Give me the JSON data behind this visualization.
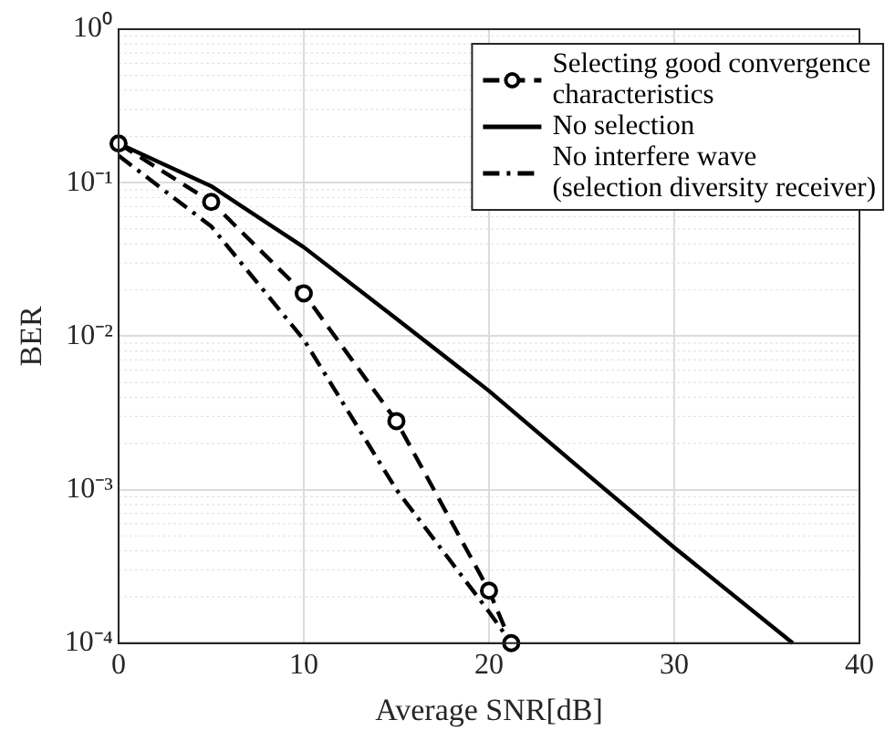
{
  "chart_data": {
    "type": "line",
    "xlabel": "Average SNR[dB]",
    "ylabel": "BER",
    "log": "y",
    "grid": true,
    "legend": "top right",
    "xlim": [
      0,
      40
    ],
    "xticks": [
      0,
      10,
      20,
      30,
      40
    ],
    "ylim": [
      0.0001,
      1
    ],
    "yticks": [
      {
        "value": 0.0001,
        "label": "10⁻⁴"
      },
      {
        "value": 0.001,
        "label": "10⁻³"
      },
      {
        "value": 0.01,
        "label": "10⁻²"
      },
      {
        "value": 0.1,
        "label": "10⁻¹"
      },
      {
        "value": 1,
        "label": "10⁰"
      }
    ],
    "series": [
      {
        "name": "Selecting good convergence characteristics",
        "color": "#000000",
        "marker": "circle",
        "line_style": "dashed",
        "x": [
          0,
          5,
          10,
          15,
          20,
          21.2
        ],
        "values": [
          0.18,
          0.075,
          0.019,
          0.0028,
          0.00022,
          0.0001
        ]
      },
      {
        "name": "No selection",
        "color": "#000000",
        "marker": "none",
        "line_style": "solid",
        "x": [
          0,
          5,
          10,
          15,
          20,
          25,
          30,
          36.4
        ],
        "values": [
          0.18,
          0.095,
          0.038,
          0.013,
          0.0044,
          0.00135,
          0.00042,
          0.0001
        ]
      },
      {
        "name": "No interfere wave (selection diversity receiver)",
        "color": "#000000",
        "marker": "none",
        "line_style": "dashdot",
        "x": [
          0,
          5,
          10,
          15,
          20,
          21.2
        ],
        "values": [
          0.15,
          0.052,
          0.0095,
          0.001,
          0.00016,
          0.0001
        ]
      }
    ]
  }
}
